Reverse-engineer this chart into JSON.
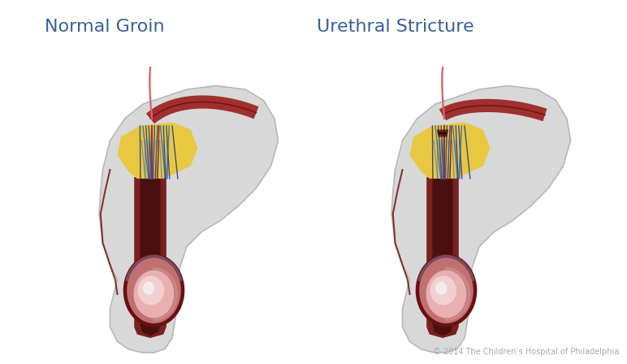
{
  "title_left": "Normal Groin",
  "title_right": "Urethral Stricture",
  "copyright": "© 2014 The Children’s Hospital of Philadelphia",
  "title_color": "#3a5f9f",
  "copyright_color": "#aaaaaa",
  "bg_color": "#ffffff",
  "skin_gray": "#d8d8d8",
  "skin_gray_edge": "#b8b8b8",
  "tissue_dark": "#7a2020",
  "tissue_mid": "#a03030",
  "fat_yellow": "#e8c840",
  "vein_blue": "#1a3a8a",
  "vein_blue2": "#3060c0",
  "scrotum_dark": "#6a1010",
  "scrotum_inner": "#c06060",
  "testicle_pink": "#e8b0b0",
  "testicle_light": "#f5dede",
  "testicle_white": "#f8f2f2",
  "blue_sheath": "#8090c0"
}
